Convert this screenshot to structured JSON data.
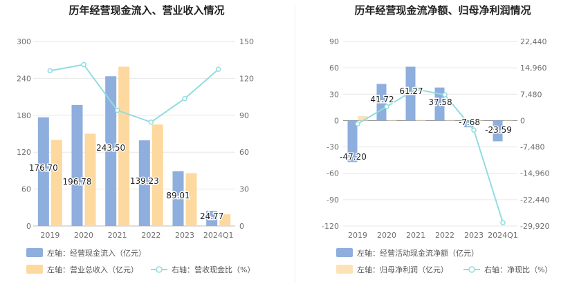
{
  "chart_data": [
    {
      "type": "bar",
      "title": "历年经营现金流入、营业收入情况",
      "categories": [
        "2019",
        "2020",
        "2021",
        "2022",
        "2023",
        "2024Q1"
      ],
      "left_axis": {
        "ylim": [
          0,
          300
        ],
        "ticks": [
          "0",
          "60",
          "120",
          "180",
          "240",
          "300"
        ]
      },
      "right_axis": {
        "ylim": [
          0,
          150
        ],
        "ticks": [
          "0",
          "30",
          "60",
          "90",
          "120",
          "150"
        ]
      },
      "series": [
        {
          "name": "左轴：经营现金流入（亿元）",
          "axis": "left",
          "kind": "bar",
          "color": "#8eaedd",
          "values": [
            176.7,
            196.78,
            243.5,
            139.23,
            89.01,
            24.77
          ],
          "labels": [
            "176.70",
            "196.78",
            "243.50",
            "139.23",
            "89.01",
            "24.77"
          ]
        },
        {
          "name": "左轴：营业总收入（亿元）",
          "axis": "left",
          "kind": "bar",
          "color": "#fdd9a0",
          "values": [
            140,
            150,
            259,
            165,
            86,
            19
          ]
        },
        {
          "name": "右轴：营收现金比（%）",
          "axis": "right",
          "kind": "line",
          "color": "#90dde0",
          "values": [
            126.2,
            131.2,
            94.0,
            84.4,
            103.5,
            127.4
          ]
        }
      ],
      "legend": "bottom"
    },
    {
      "type": "bar",
      "title": "历年经营现金流净额、归母净利润情况",
      "categories": [
        "2019",
        "2020",
        "2021",
        "2022",
        "2023",
        "2024Q1"
      ],
      "left_axis": {
        "ylim": [
          -120,
          90
        ],
        "ticks": [
          "-120",
          "-90",
          "-60",
          "-30",
          "0",
          "30",
          "60",
          "90"
        ]
      },
      "right_axis": {
        "ylim": [
          -29920,
          22440
        ],
        "ticks": [
          "-29,920",
          "-22,440",
          "-14,960",
          "-7,480",
          "0",
          "7,480",
          "14,960",
          "22,440"
        ]
      },
      "series": [
        {
          "name": "左轴：经营活动现金流净额（亿元）",
          "axis": "left",
          "kind": "bar",
          "color": "#8eaedd",
          "values": [
            -47.2,
            41.72,
            61.27,
            37.58,
            -7.68,
            -23.59
          ],
          "labels": [
            "-47.20",
            "41.72",
            "61.27",
            "37.58",
            "-7.68",
            "-23.59"
          ]
        },
        {
          "name": "左轴：归母净利润（亿元）",
          "axis": "left",
          "kind": "bar",
          "color": "#fde2b8",
          "values": [
            5,
            0.4,
            0.6,
            0.3,
            -0.2,
            -0.3
          ]
        },
        {
          "name": "右轴：净现比（%）",
          "axis": "right",
          "kind": "line",
          "color": "#90dde0",
          "values": [
            -944,
            3950,
            8900,
            7300,
            -2700,
            -29000
          ]
        }
      ],
      "legend": "bottom"
    }
  ]
}
